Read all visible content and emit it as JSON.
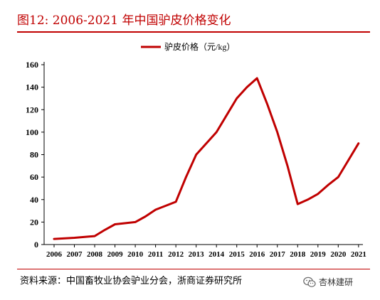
{
  "figure": {
    "title": "图12:    2006-2021 年中国驴皮价格变化",
    "source": "资料来源：中国畜牧业协会驴业分会，浙商证券研究所",
    "watermark": "杏林建研"
  },
  "colors": {
    "accent": "#c00000",
    "line": "#c00000"
  },
  "chart_data": {
    "type": "line",
    "title": "",
    "xlabel": "",
    "ylabel": "",
    "xlim": [
      2006,
      2021
    ],
    "ylim": [
      0,
      160
    ],
    "yticks": [
      0,
      20,
      40,
      60,
      80,
      100,
      120,
      140,
      160
    ],
    "xticks": [
      "2006",
      "2007",
      "2008",
      "2009",
      "2010",
      "2011",
      "2012",
      "2013",
      "2014",
      "2015",
      "2016",
      "2017",
      "2018",
      "2019",
      "2020",
      "2021"
    ],
    "grid": false,
    "legend_position": "top-center",
    "series": [
      {
        "name": "驴皮价格（元/kg）",
        "x": [
          2006,
          2007,
          2008,
          2008.5,
          2009,
          2010,
          2010.5,
          2011,
          2012,
          2012.5,
          2013,
          2013.5,
          2014,
          2014.5,
          2015,
          2015.5,
          2016,
          2016.5,
          2017,
          2017.5,
          2018,
          2018.5,
          2019,
          2019.5,
          2020,
          2020.5,
          2021
        ],
        "y": [
          5,
          6,
          7.5,
          13,
          18,
          20,
          25,
          31,
          38,
          60,
          80,
          90,
          100,
          115,
          130,
          140,
          148,
          125,
          100,
          70,
          36,
          40,
          45,
          53,
          60,
          75,
          90
        ]
      }
    ]
  }
}
